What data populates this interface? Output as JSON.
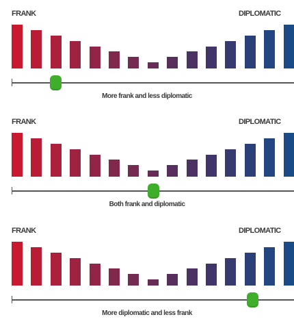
{
  "colors": {
    "bars": [
      "#c8192f",
      "#b91d36",
      "#ac203c",
      "#9e2242",
      "#902547",
      "#82284c",
      "#742a51",
      "#672c55",
      "#582f5c",
      "#4c3263",
      "#403469",
      "#363a6f",
      "#2b3f78",
      "#224681",
      "#1a4b87"
    ],
    "slider_knob": "#3fae2a",
    "track": "#555555"
  },
  "scales": [
    {
      "left_label": "FRANK",
      "right_label": "DIPLOMATIC",
      "caption": "More frank and less diplomatic",
      "slider_value": 0.154
    },
    {
      "left_label": "FRANK",
      "right_label": "DIPLOMATIC",
      "caption": "Both frank and diplomatic",
      "slider_value": 0.5
    },
    {
      "left_label": "FRANK",
      "right_label": "DIPLOMATIC",
      "caption": "More diplomatic and less frank",
      "slider_value": 0.854
    }
  ]
}
